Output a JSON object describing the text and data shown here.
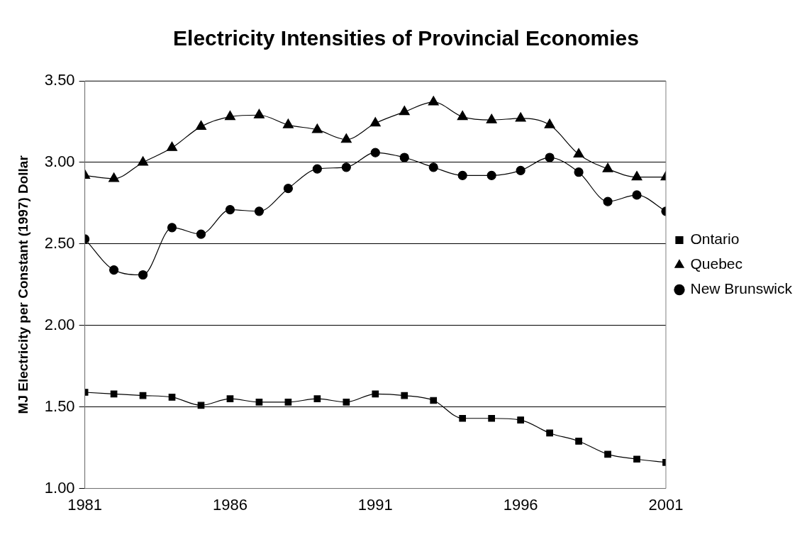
{
  "chart_data": {
    "type": "line",
    "title": "Electricity Intensities of Provincial Economies",
    "ylabel": "MJ Electricity per Constant (1997) Dollar",
    "x": [
      1981,
      1982,
      1983,
      1984,
      1985,
      1986,
      1987,
      1988,
      1989,
      1990,
      1991,
      1992,
      1993,
      1994,
      1995,
      1996,
      1997,
      1998,
      1999,
      2000,
      2001
    ],
    "series": [
      {
        "name": "Ontario",
        "color": "#000000",
        "marker": "square",
        "values": [
          1.59,
          1.58,
          1.57,
          1.56,
          1.51,
          1.55,
          1.53,
          1.53,
          1.55,
          1.53,
          1.58,
          1.57,
          1.54,
          1.43,
          1.43,
          1.42,
          1.34,
          1.29,
          1.21,
          1.18,
          1.16
        ]
      },
      {
        "name": "Quebec",
        "color": "#000000",
        "marker": "triangle",
        "values": [
          2.92,
          2.9,
          3.0,
          3.09,
          3.22,
          3.28,
          3.29,
          3.23,
          3.2,
          3.14,
          3.24,
          3.31,
          3.37,
          3.28,
          3.26,
          3.27,
          3.23,
          3.05,
          2.96,
          2.91,
          2.91
        ]
      },
      {
        "name": "New Brunswick",
        "color": "#000000",
        "marker": "circle",
        "values": [
          2.53,
          2.34,
          2.31,
          2.6,
          2.56,
          2.71,
          2.7,
          2.84,
          2.96,
          2.97,
          3.06,
          3.03,
          2.97,
          2.92,
          2.92,
          2.95,
          3.03,
          2.94,
          2.76,
          2.8,
          2.7
        ]
      }
    ],
    "xlim": [
      1981,
      2001
    ],
    "xticks": [
      1981,
      1986,
      1991,
      1996,
      2001
    ],
    "ylim": [
      1.0,
      3.5
    ],
    "yticks": [
      {
        "value": 1,
        "label": "1.00"
      },
      {
        "value": 1.5,
        "label": "1.50"
      },
      {
        "value": 2,
        "label": "2.00"
      },
      {
        "value": 2.5,
        "label": "2.50"
      },
      {
        "value": 3,
        "label": "3.00"
      },
      {
        "value": 3.5,
        "label": "3.50"
      }
    ],
    "grid": "y",
    "legend": "right"
  }
}
